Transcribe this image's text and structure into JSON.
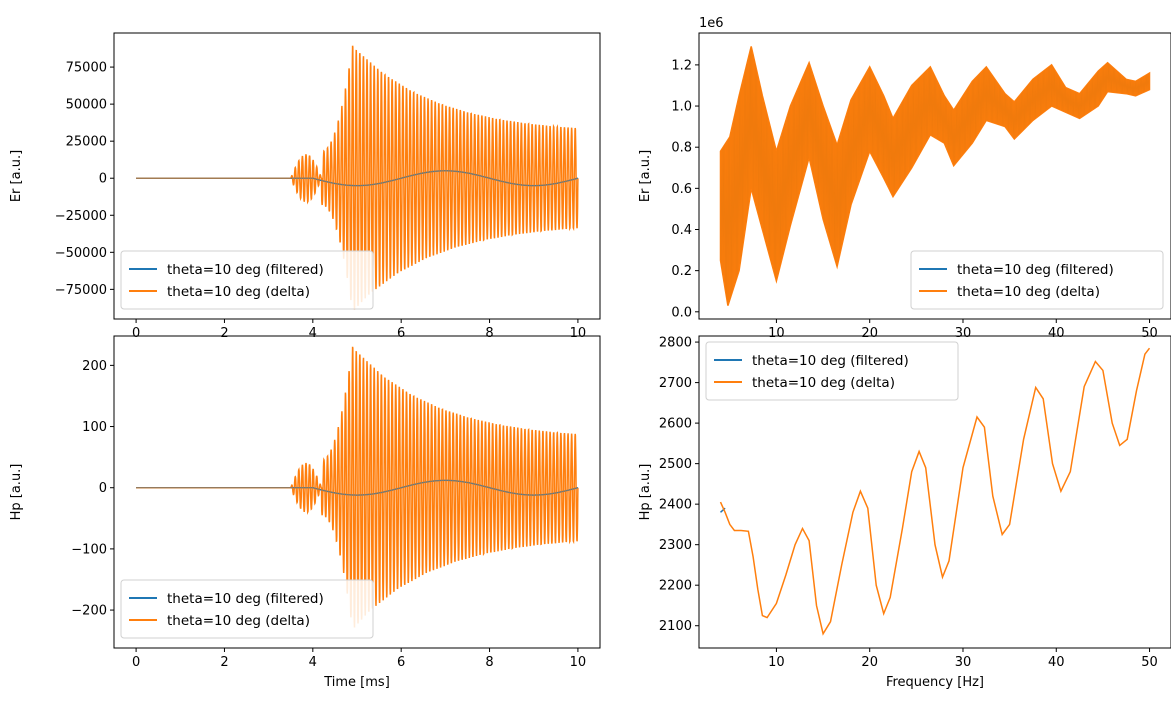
{
  "figure": {
    "legend_entries": [
      "theta=10 deg (filtered)",
      "theta=10 deg (delta)"
    ],
    "colors": {
      "filtered": "#1f77b4",
      "delta": "#ff7f0e"
    }
  },
  "chart_data": [
    {
      "id": "er-time",
      "type": "line",
      "xlabel": "",
      "ylabel": "Er [a.u.]",
      "xlim": [
        -0.5,
        10.5
      ],
      "ylim": [
        -95000,
        98000
      ],
      "xticks": [
        0,
        2,
        4,
        6,
        8,
        10
      ],
      "xtick_labels": [
        "0",
        "2",
        "4",
        "6",
        "8",
        "10"
      ],
      "yticks": [
        -75000,
        -50000,
        -25000,
        0,
        25000,
        50000,
        75000
      ],
      "ytick_labels": [
        "−75000",
        "−50000",
        "−25000",
        "0",
        "25000",
        "50000",
        "75000"
      ],
      "offset_label": "",
      "legend": "lower-left",
      "series": [
        {
          "name": "theta=10 deg (filtered)",
          "kind": "filtered",
          "signal": {
            "type": "slow_wave",
            "t0": 4.0,
            "period": 4.0,
            "amp": 5000,
            "until": 10
          }
        },
        {
          "name": "theta=10 deg (delta)",
          "kind": "delta",
          "signal": {
            "type": "chirp",
            "onset": 3.5,
            "rise_end": 4.9,
            "peak": 90000,
            "end_amp": 30000,
            "precursor_amp": 18000,
            "cycles": 80,
            "t_end": 10
          }
        }
      ]
    },
    {
      "id": "er-freq",
      "type": "area",
      "xlabel": "",
      "ylabel": "Er [a.u.]",
      "xlim": [
        1.7,
        52.3
      ],
      "ylim": [
        -0.035,
        1.355
      ],
      "xticks": [
        10,
        20,
        30,
        40,
        50
      ],
      "xtick_labels": [
        "10",
        "20",
        "30",
        "40",
        "50"
      ],
      "yticks": [
        0.0,
        0.2,
        0.4,
        0.6,
        0.8,
        1.0,
        1.2
      ],
      "ytick_labels": [
        "0.0",
        "0.2",
        "0.4",
        "0.6",
        "0.8",
        "1.0",
        "1.2"
      ],
      "offset_label": "1e6",
      "legend": "lower-right",
      "x_range": [
        4,
        50
      ],
      "upper_envelope": [
        [
          4,
          0.78
        ],
        [
          5,
          0.85
        ],
        [
          6,
          1.05
        ],
        [
          7.3,
          1.29
        ],
        [
          8.5,
          1.05
        ],
        [
          10,
          0.78
        ],
        [
          11.5,
          1.0
        ],
        [
          13.5,
          1.21
        ],
        [
          15,
          1.0
        ],
        [
          16.5,
          0.81
        ],
        [
          18,
          1.03
        ],
        [
          20,
          1.19
        ],
        [
          21.5,
          1.05
        ],
        [
          22.5,
          0.94
        ],
        [
          24.5,
          1.1
        ],
        [
          26.5,
          1.19
        ],
        [
          28,
          1.05
        ],
        [
          29,
          0.98
        ],
        [
          31,
          1.12
        ],
        [
          32.5,
          1.19
        ],
        [
          34.5,
          1.06
        ],
        [
          35.5,
          1.02
        ],
        [
          37.5,
          1.13
        ],
        [
          39.5,
          1.2
        ],
        [
          41,
          1.09
        ],
        [
          42.5,
          1.06
        ],
        [
          44.5,
          1.17
        ],
        [
          45.5,
          1.21
        ],
        [
          47.5,
          1.13
        ],
        [
          48.5,
          1.12
        ],
        [
          50,
          1.16
        ]
      ],
      "lower_envelope": [
        [
          4,
          0.25
        ],
        [
          4.8,
          0.03
        ],
        [
          6,
          0.2
        ],
        [
          7.3,
          0.6
        ],
        [
          8.5,
          0.4
        ],
        [
          10,
          0.15
        ],
        [
          11.5,
          0.42
        ],
        [
          13.5,
          0.75
        ],
        [
          15,
          0.45
        ],
        [
          16.5,
          0.22
        ],
        [
          18,
          0.52
        ],
        [
          20,
          0.78
        ],
        [
          21.5,
          0.65
        ],
        [
          22.5,
          0.56
        ],
        [
          24.5,
          0.7
        ],
        [
          26.5,
          0.86
        ],
        [
          28,
          0.82
        ],
        [
          29,
          0.71
        ],
        [
          31,
          0.82
        ],
        [
          32.5,
          0.93
        ],
        [
          34.5,
          0.9
        ],
        [
          35.5,
          0.84
        ],
        [
          37.5,
          0.93
        ],
        [
          39.5,
          1.0
        ],
        [
          41,
          0.97
        ],
        [
          42.5,
          0.94
        ],
        [
          44.5,
          1.0
        ],
        [
          45.5,
          1.07
        ],
        [
          47.5,
          1.06
        ],
        [
          48.5,
          1.05
        ],
        [
          50,
          1.08
        ]
      ]
    },
    {
      "id": "hp-time",
      "type": "line",
      "xlabel": "Time [ms]",
      "ylabel": "Hp [a.u.]",
      "xlim": [
        -0.5,
        10.5
      ],
      "ylim": [
        -262,
        248
      ],
      "xticks": [
        0,
        2,
        4,
        6,
        8,
        10
      ],
      "xtick_labels": [
        "0",
        "2",
        "4",
        "6",
        "8",
        "10"
      ],
      "yticks": [
        -200,
        -100,
        0,
        100,
        200
      ],
      "ytick_labels": [
        "−200",
        "−100",
        "0",
        "100",
        "200"
      ],
      "offset_label": "",
      "legend": "lower-left",
      "series": [
        {
          "name": "theta=10 deg (filtered)",
          "kind": "filtered",
          "signal": {
            "type": "slow_wave",
            "t0": 4.0,
            "period": 4.0,
            "amp": 12,
            "until": 10
          }
        },
        {
          "name": "theta=10 deg (delta)",
          "kind": "delta",
          "signal": {
            "type": "chirp",
            "onset": 3.5,
            "rise_end": 4.9,
            "peak": 232,
            "end_amp": 78,
            "precursor_amp": 45,
            "cycles": 80,
            "t_end": 10
          }
        }
      ]
    },
    {
      "id": "hp-freq",
      "type": "line",
      "xlabel": "Frequency [Hz]",
      "ylabel": "Hp [a.u.]",
      "xlim": [
        1.7,
        52.3
      ],
      "ylim": [
        2045,
        2815
      ],
      "xticks": [
        10,
        20,
        30,
        40,
        50
      ],
      "xtick_labels": [
        "10",
        "20",
        "30",
        "40",
        "50"
      ],
      "yticks": [
        2100,
        2200,
        2300,
        2400,
        2500,
        2600,
        2700,
        2800
      ],
      "ytick_labels": [
        "2100",
        "2200",
        "2300",
        "2400",
        "2500",
        "2600",
        "2700",
        "2800"
      ],
      "offset_label": "",
      "legend": "top-left",
      "series": [
        {
          "name": "theta=10 deg (filtered)",
          "kind": "filtered",
          "points": [
            [
              4,
              2380
            ],
            [
              4.5,
              2390
            ]
          ]
        },
        {
          "name": "theta=10 deg (delta)",
          "kind": "delta",
          "points": [
            [
              4,
              2405
            ],
            [
              4.5,
              2380
            ],
            [
              5,
              2350
            ],
            [
              5.5,
              2335
            ],
            [
              6.2,
              2335
            ],
            [
              7,
              2333
            ],
            [
              7.5,
              2270
            ],
            [
              8,
              2190
            ],
            [
              8.5,
              2125
            ],
            [
              9,
              2120
            ],
            [
              10,
              2155
            ],
            [
              11,
              2225
            ],
            [
              12,
              2300
            ],
            [
              12.8,
              2340
            ],
            [
              13.5,
              2310
            ],
            [
              14.3,
              2150
            ],
            [
              15,
              2080
            ],
            [
              15.8,
              2110
            ],
            [
              17,
              2250
            ],
            [
              18.2,
              2380
            ],
            [
              19,
              2432
            ],
            [
              19.8,
              2390
            ],
            [
              20.7,
              2200
            ],
            [
              21.5,
              2130
            ],
            [
              22.2,
              2170
            ],
            [
              23.5,
              2340
            ],
            [
              24.5,
              2480
            ],
            [
              25.3,
              2530
            ],
            [
              26,
              2490
            ],
            [
              27,
              2300
            ],
            [
              27.8,
              2220
            ],
            [
              28.5,
              2260
            ],
            [
              30,
              2490
            ],
            [
              31.5,
              2615
            ],
            [
              32.3,
              2590
            ],
            [
              33.2,
              2420
            ],
            [
              34.2,
              2325
            ],
            [
              35,
              2350
            ],
            [
              36.5,
              2560
            ],
            [
              37.8,
              2688
            ],
            [
              38.6,
              2660
            ],
            [
              39.6,
              2500
            ],
            [
              40.5,
              2432
            ],
            [
              41.5,
              2480
            ],
            [
              43,
              2690
            ],
            [
              44.2,
              2752
            ],
            [
              45,
              2730
            ],
            [
              46,
              2600
            ],
            [
              46.8,
              2545
            ],
            [
              47.6,
              2560
            ],
            [
              48.6,
              2680
            ],
            [
              49.5,
              2770
            ],
            [
              50,
              2785
            ]
          ]
        }
      ]
    }
  ]
}
